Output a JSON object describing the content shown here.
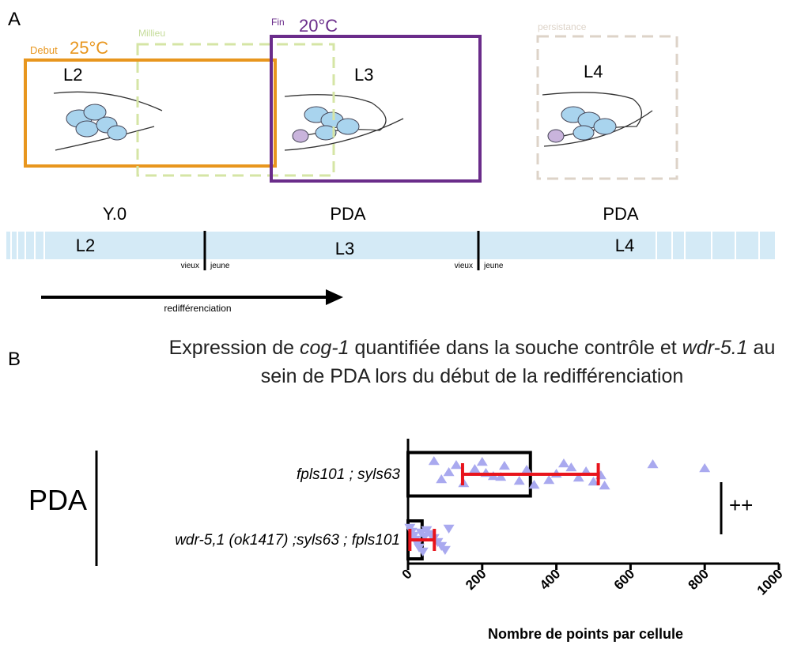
{
  "panel_a": {
    "label": "A",
    "phases": [
      {
        "name": "Debut",
        "temp": "25°C"
      },
      {
        "name": "Millieu"
      },
      {
        "name": "Fin",
        "temp": "20°C"
      },
      {
        "name": "persistance"
      }
    ],
    "stages": [
      "L2",
      "L3",
      "L4"
    ],
    "cells": [
      "Y.0",
      "PDA",
      "PDA"
    ],
    "timeline": {
      "stages": [
        "L2",
        "L3",
        "L4"
      ],
      "marks": [
        {
          "old": "vieux",
          "young": "jeune"
        },
        {
          "old": "vieux",
          "young": "jeune"
        }
      ]
    },
    "arrow": "redifférenciation"
  },
  "panel_b": {
    "label": "B"
  },
  "chart_data": {
    "type": "bar",
    "orientation": "horizontal",
    "title": [
      "Expression de ",
      "cog-1",
      " quantifiée dans la souche contrôle et ",
      "wdr-5.1",
      " au sein de PDA lors du début de la redifférenciation"
    ],
    "title_italic": [
      false,
      true,
      false,
      true,
      false
    ],
    "group_label": "PDA",
    "significance": "++",
    "categories": [
      "fpls101 ; syls63",
      "wdr-5,1 (ok1417) ;syls63 ; fpls101"
    ],
    "values": [
      330,
      38
    ],
    "errors": [
      183,
      33
    ],
    "points": [
      [
        70,
        130,
        180,
        210,
        250,
        300,
        340,
        420,
        440,
        480,
        520,
        90,
        150,
        200,
        260,
        320,
        400,
        460,
        500,
        530,
        660,
        800,
        110,
        230,
        380
      ],
      [
        5,
        10,
        15,
        20,
        25,
        30,
        40,
        50,
        60,
        70,
        80,
        90,
        100,
        110,
        35,
        45
      ]
    ],
    "bar_color": "#000000",
    "error_color": "#e8141c",
    "point_color": "#a9a9ef",
    "xlim": [
      0,
      1000
    ],
    "xticks": [
      0,
      200,
      400,
      600,
      800,
      1000
    ],
    "xlabel": "Nombre de points par cellule"
  }
}
